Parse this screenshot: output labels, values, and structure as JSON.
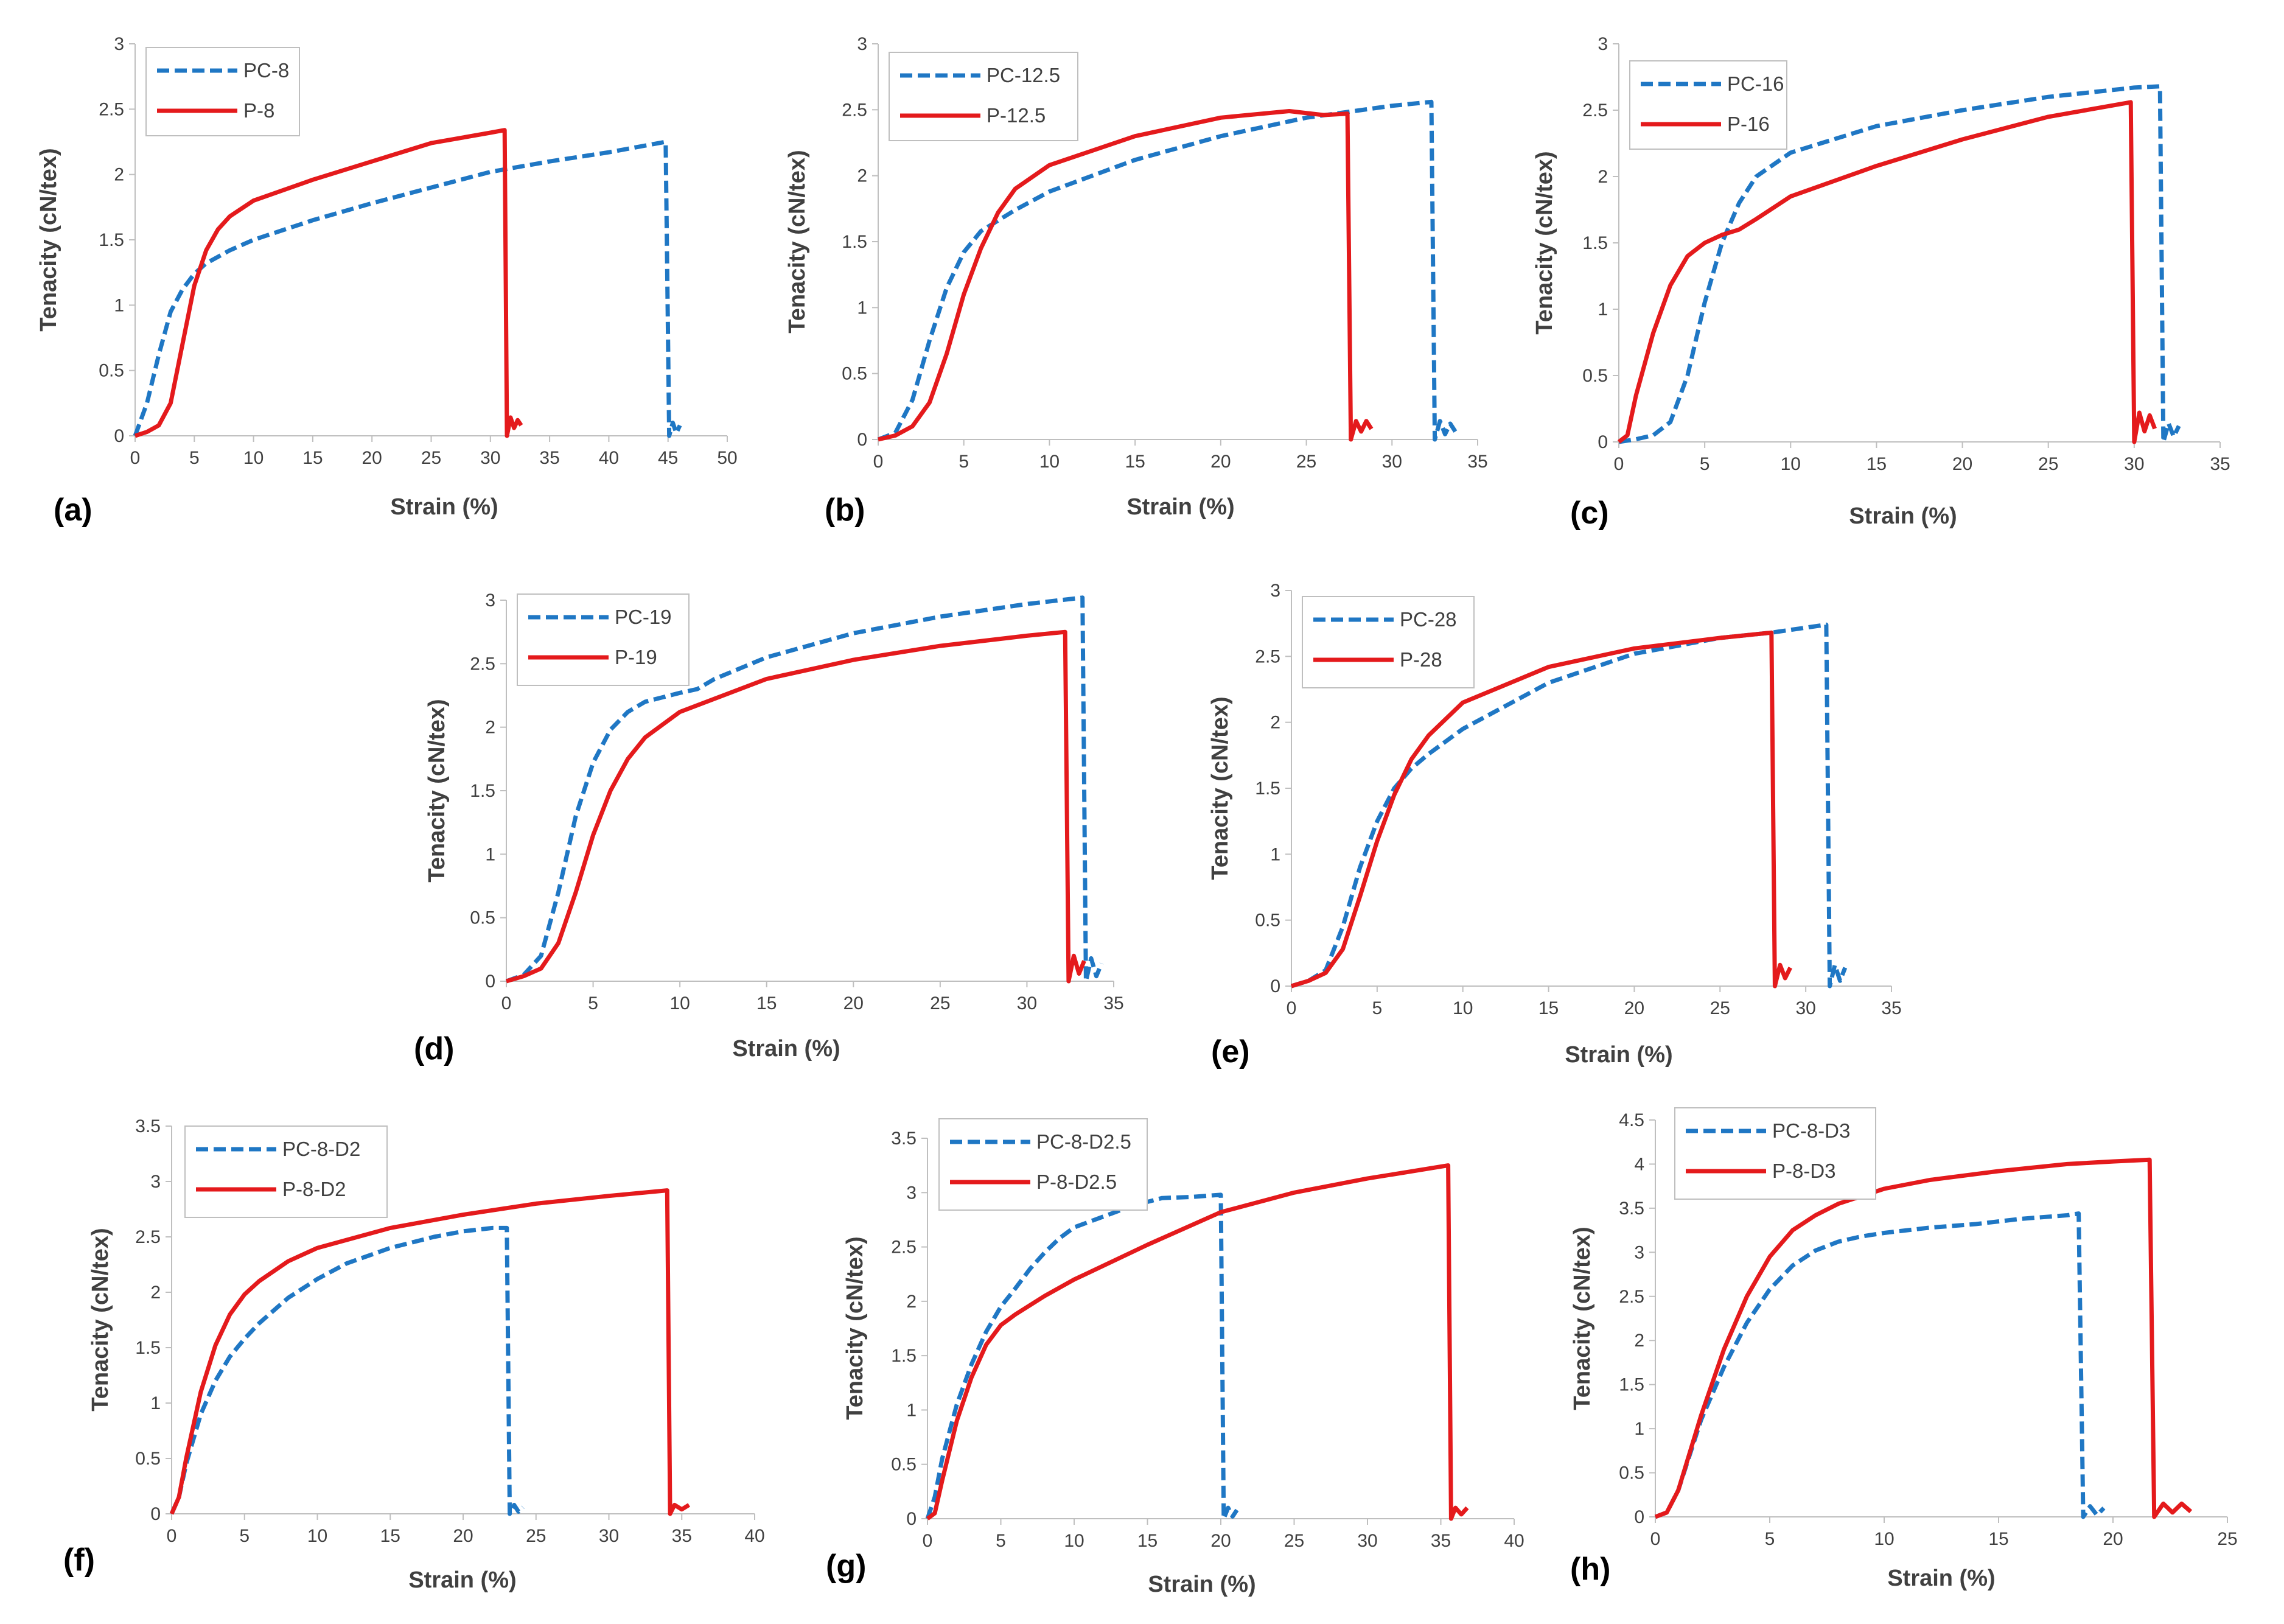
{
  "colors": {
    "pc": "#1f77c4",
    "p": "#e41a1c",
    "axis": "#bfbfbf",
    "text": "#404040"
  },
  "chart_data": [
    {
      "panel": "(a)",
      "type": "line",
      "xlabel": "Strain (%)",
      "ylabel": "Tenacity (cN/tex)",
      "xlim": [
        0,
        50
      ],
      "ylim": [
        0,
        3
      ],
      "xticks": [
        0,
        5,
        10,
        15,
        20,
        25,
        30,
        35,
        40,
        45,
        50
      ],
      "yticks": [
        0,
        0.5,
        1,
        1.5,
        2,
        2.5,
        3
      ],
      "grid": false,
      "legend_position": "top-left",
      "series": [
        {
          "name": "PC-8",
          "style": "dashed",
          "x": [
            0,
            1,
            2,
            3,
            4,
            5,
            6,
            8,
            10,
            15,
            20,
            25,
            30,
            35,
            40,
            44.8,
            45.1,
            45.4,
            45.7,
            46
          ],
          "y": [
            0,
            0.25,
            0.62,
            0.95,
            1.12,
            1.24,
            1.32,
            1.42,
            1.5,
            1.65,
            1.78,
            1.9,
            2.02,
            2.1,
            2.17,
            2.25,
            0,
            0.1,
            0.02,
            0.08
          ]
        },
        {
          "name": "P-8",
          "style": "solid",
          "x": [
            0,
            1,
            2,
            3,
            4,
            5,
            6,
            7,
            8,
            10,
            15,
            20,
            25,
            30,
            31.2,
            31.4,
            31.7,
            32,
            32.3,
            32.6
          ],
          "y": [
            0,
            0.03,
            0.08,
            0.25,
            0.7,
            1.15,
            1.42,
            1.58,
            1.68,
            1.8,
            1.96,
            2.1,
            2.24,
            2.32,
            2.34,
            0,
            0.14,
            0.06,
            0.12,
            0.08
          ]
        }
      ]
    },
    {
      "panel": "(b)",
      "type": "line",
      "xlabel": "Strain (%)",
      "ylabel": "Tenacity (cN/tex)",
      "xlim": [
        0,
        35
      ],
      "ylim": [
        0,
        3
      ],
      "xticks": [
        0,
        5,
        10,
        15,
        20,
        25,
        30,
        35
      ],
      "yticks": [
        0,
        0.5,
        1,
        1.5,
        2,
        2.5,
        3
      ],
      "grid": false,
      "legend_position": "top-left",
      "series": [
        {
          "name": "PC-12.5",
          "style": "dashed",
          "x": [
            0,
            1,
            2,
            3,
            4,
            5,
            6,
            8,
            10,
            15,
            20,
            25,
            30,
            32.3,
            32.5,
            32.8,
            33.1,
            33.4,
            33.7
          ],
          "y": [
            0,
            0.05,
            0.3,
            0.75,
            1.15,
            1.42,
            1.58,
            1.74,
            1.88,
            2.12,
            2.3,
            2.44,
            2.53,
            2.56,
            0,
            0.14,
            0.04,
            0.12,
            0.06
          ]
        },
        {
          "name": "P-12.5",
          "style": "solid",
          "x": [
            0,
            1,
            2,
            3,
            4,
            5,
            6,
            7,
            8,
            10,
            15,
            20,
            24,
            26,
            27.4,
            27.6,
            27.9,
            28.2,
            28.5,
            28.8
          ],
          "y": [
            0,
            0.03,
            0.1,
            0.28,
            0.65,
            1.1,
            1.45,
            1.72,
            1.9,
            2.08,
            2.3,
            2.44,
            2.49,
            2.46,
            2.47,
            0,
            0.14,
            0.06,
            0.14,
            0.08
          ]
        }
      ]
    },
    {
      "panel": "(c)",
      "type": "line",
      "xlabel": "Strain (%)",
      "ylabel": "Tenacity (cN/tex)",
      "xlim": [
        0,
        35
      ],
      "ylim": [
        0,
        3
      ],
      "xticks": [
        0,
        5,
        10,
        15,
        20,
        25,
        30,
        35
      ],
      "yticks": [
        0,
        0.5,
        1,
        1.5,
        2,
        2.5,
        3
      ],
      "grid": false,
      "legend_position": "top-left",
      "series": [
        {
          "name": "PC-16",
          "style": "dashed",
          "x": [
            0,
            1,
            2,
            3,
            4,
            5,
            6,
            7,
            8,
            10,
            15,
            20,
            25,
            30,
            31.5,
            31.7,
            32,
            32.3,
            32.6
          ],
          "y": [
            0,
            0.02,
            0.05,
            0.15,
            0.5,
            1.05,
            1.5,
            1.8,
            2.0,
            2.18,
            2.38,
            2.5,
            2.6,
            2.67,
            2.68,
            0,
            0.14,
            0.04,
            0.12
          ]
        },
        {
          "name": "P-16",
          "style": "solid",
          "x": [
            0,
            0.5,
            1,
            2,
            3,
            4,
            5,
            6,
            7,
            8,
            10,
            15,
            20,
            25,
            29.8,
            30,
            30.3,
            30.6,
            30.9,
            31.2
          ],
          "y": [
            0,
            0.05,
            0.35,
            0.82,
            1.18,
            1.4,
            1.5,
            1.56,
            1.6,
            1.68,
            1.85,
            2.08,
            2.28,
            2.45,
            2.56,
            0,
            0.22,
            0.08,
            0.2,
            0.1
          ]
        }
      ]
    },
    {
      "panel": "(d)",
      "type": "line",
      "xlabel": "Strain (%)",
      "ylabel": "Tenacity (cN/tex)",
      "xlim": [
        0,
        35
      ],
      "ylim": [
        0,
        3
      ],
      "xticks": [
        0,
        5,
        10,
        15,
        20,
        25,
        30,
        35
      ],
      "yticks": [
        0,
        0.5,
        1,
        1.5,
        2,
        2.5,
        3
      ],
      "grid": false,
      "legend_position": "top-left",
      "series": [
        {
          "name": "PC-19",
          "style": "dashed",
          "x": [
            0,
            1,
            2,
            3,
            4,
            5,
            6,
            7,
            8,
            10,
            11,
            12,
            15,
            20,
            25,
            30,
            33.2,
            33.4,
            33.7,
            34,
            34.3
          ],
          "y": [
            0,
            0.05,
            0.2,
            0.7,
            1.3,
            1.72,
            1.98,
            2.12,
            2.2,
            2.27,
            2.3,
            2.38,
            2.55,
            2.74,
            2.87,
            2.97,
            3.02,
            0,
            0.18,
            0.04,
            0.14
          ]
        },
        {
          "name": "P-19",
          "style": "solid",
          "x": [
            0,
            1,
            2,
            3,
            4,
            5,
            6,
            7,
            8,
            10,
            15,
            20,
            25,
            30,
            32.2,
            32.4,
            32.7,
            33,
            33.3
          ],
          "y": [
            0,
            0.04,
            0.1,
            0.3,
            0.7,
            1.15,
            1.5,
            1.75,
            1.92,
            2.12,
            2.38,
            2.53,
            2.64,
            2.72,
            2.75,
            0,
            0.2,
            0.06,
            0.16
          ]
        }
      ]
    },
    {
      "panel": "(e)",
      "type": "line",
      "xlabel": "Strain (%)",
      "ylabel": "Tenacity (cN/tex)",
      "xlim": [
        0,
        35
      ],
      "ylim": [
        0,
        3
      ],
      "xticks": [
        0,
        5,
        10,
        15,
        20,
        25,
        30,
        35
      ],
      "yticks": [
        0,
        0.5,
        1,
        1.5,
        2,
        2.5,
        3
      ],
      "grid": false,
      "legend_position": "top-left",
      "series": [
        {
          "name": "PC-28",
          "style": "dashed",
          "x": [
            0,
            1,
            2,
            3,
            4,
            5,
            6,
            7,
            8,
            10,
            15,
            20,
            25,
            28,
            31.2,
            31.4,
            31.7,
            32,
            32.3
          ],
          "y": [
            0,
            0.04,
            0.12,
            0.45,
            0.9,
            1.25,
            1.5,
            1.65,
            1.76,
            1.95,
            2.3,
            2.52,
            2.64,
            2.68,
            2.74,
            0,
            0.16,
            0.04,
            0.14
          ]
        },
        {
          "name": "P-28",
          "style": "solid",
          "x": [
            0,
            1,
            2,
            3,
            4,
            5,
            6,
            7,
            8,
            10,
            15,
            20,
            25,
            28,
            28.2,
            28.5,
            28.8,
            29.1
          ],
          "y": [
            0,
            0.04,
            0.1,
            0.28,
            0.68,
            1.1,
            1.45,
            1.72,
            1.9,
            2.15,
            2.42,
            2.56,
            2.64,
            2.68,
            0,
            0.16,
            0.06,
            0.14
          ]
        }
      ]
    },
    {
      "panel": "(f)",
      "type": "line",
      "xlabel": "Strain (%)",
      "ylabel": "Tenacity (cN/tex)",
      "xlim": [
        0,
        40
      ],
      "ylim": [
        0,
        3.5
      ],
      "xticks": [
        0,
        5,
        10,
        15,
        20,
        25,
        30,
        35,
        40
      ],
      "yticks": [
        0,
        0.5,
        1,
        1.5,
        2,
        2.5,
        3,
        3.5
      ],
      "grid": false,
      "legend_position": "top-left",
      "series": [
        {
          "name": "PC-8-D2",
          "style": "dashed",
          "x": [
            0,
            0.5,
            1,
            2,
            3,
            4,
            5,
            6,
            8,
            10,
            12,
            15,
            18,
            20,
            22,
            23,
            23.2,
            23.5,
            23.8,
            24.1
          ],
          "y": [
            0,
            0.15,
            0.45,
            0.9,
            1.2,
            1.42,
            1.58,
            1.72,
            1.95,
            2.12,
            2.26,
            2.4,
            2.5,
            2.55,
            2.58,
            2.58,
            0,
            0.08,
            0.02,
            0.06
          ]
        },
        {
          "name": "P-8-D2",
          "style": "solid",
          "x": [
            0,
            0.5,
            1,
            2,
            3,
            4,
            5,
            6,
            8,
            10,
            15,
            20,
            25,
            30,
            34,
            34.2,
            34.5,
            35,
            35.5
          ],
          "y": [
            0,
            0.15,
            0.5,
            1.1,
            1.52,
            1.8,
            1.98,
            2.1,
            2.28,
            2.4,
            2.58,
            2.7,
            2.8,
            2.87,
            2.92,
            0,
            0.08,
            0.04,
            0.08
          ]
        }
      ]
    },
    {
      "panel": "(g)",
      "type": "line",
      "xlabel": "Strain (%)",
      "ylabel": "Tenacity (cN/tex)",
      "xlim": [
        0,
        40
      ],
      "ylim": [
        0,
        3.5
      ],
      "xticks": [
        0,
        5,
        10,
        15,
        20,
        25,
        30,
        35,
        40
      ],
      "yticks": [
        0,
        0.5,
        1,
        1.5,
        2,
        2.5,
        3,
        3.5
      ],
      "grid": false,
      "legend_position": "top-left",
      "series": [
        {
          "name": "PC-8-D2.5",
          "style": "dashed",
          "x": [
            0,
            0.5,
            1,
            2,
            3,
            4,
            5,
            6,
            7,
            8,
            9,
            10,
            12,
            14,
            16,
            18,
            20,
            20.2,
            20.5,
            20.8,
            21.1
          ],
          "y": [
            0,
            0.2,
            0.55,
            1.05,
            1.42,
            1.72,
            1.95,
            2.12,
            2.3,
            2.45,
            2.58,
            2.68,
            2.78,
            2.88,
            2.95,
            2.96,
            2.98,
            0,
            0.1,
            0.02,
            0.08
          ]
        },
        {
          "name": "P-8-D2.5",
          "style": "solid",
          "x": [
            0,
            0.5,
            1,
            2,
            3,
            4,
            5,
            6,
            8,
            10,
            15,
            20,
            25,
            30,
            35.5,
            35.7,
            36,
            36.4,
            36.8
          ],
          "y": [
            0,
            0.05,
            0.35,
            0.9,
            1.3,
            1.6,
            1.78,
            1.88,
            2.05,
            2.2,
            2.52,
            2.82,
            3.0,
            3.13,
            3.25,
            0,
            0.1,
            0.04,
            0.1
          ]
        }
      ]
    },
    {
      "panel": "(h)",
      "type": "line",
      "xlabel": "Strain (%)",
      "ylabel": "Tenacity (cN/tex)",
      "xlim": [
        0,
        25
      ],
      "ylim": [
        0,
        4.5
      ],
      "xticks": [
        0,
        5,
        10,
        15,
        20,
        25
      ],
      "yticks": [
        0,
        0.5,
        1,
        1.5,
        2,
        2.5,
        3,
        3.5,
        4,
        4.5
      ],
      "grid": false,
      "legend_position": "top-left",
      "series": [
        {
          "name": "PC-8-D3",
          "style": "dashed",
          "x": [
            0,
            0.5,
            1,
            2,
            3,
            4,
            5,
            6,
            7,
            8,
            9,
            10,
            12,
            14,
            16,
            18,
            18.5,
            18.7,
            19,
            19.3,
            19.6
          ],
          "y": [
            0,
            0.05,
            0.3,
            1.1,
            1.7,
            2.2,
            2.58,
            2.85,
            3.02,
            3.12,
            3.18,
            3.22,
            3.28,
            3.32,
            3.38,
            3.42,
            3.44,
            0,
            0.12,
            0.02,
            0.1
          ]
        },
        {
          "name": "P-8-D3",
          "style": "solid",
          "x": [
            0,
            0.5,
            1,
            2,
            3,
            4,
            5,
            6,
            7,
            8,
            10,
            12,
            15,
            18,
            20,
            21.6,
            21.8,
            22.2,
            22.6,
            23,
            23.4
          ],
          "y": [
            0,
            0.05,
            0.3,
            1.15,
            1.9,
            2.5,
            2.95,
            3.25,
            3.42,
            3.55,
            3.72,
            3.82,
            3.92,
            4.0,
            4.03,
            4.05,
            0,
            0.15,
            0.05,
            0.15,
            0.06
          ]
        }
      ]
    }
  ]
}
